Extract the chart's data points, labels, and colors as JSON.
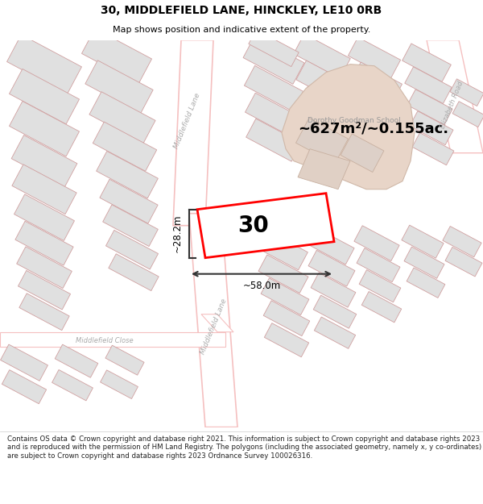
{
  "title": "30, MIDDLEFIELD LANE, HINCKLEY, LE10 0RB",
  "subtitle": "Map shows position and indicative extent of the property.",
  "footer": "Contains OS data © Crown copyright and database right 2021. This information is subject to Crown copyright and database rights 2023 and is reproduced with the permission of HM Land Registry. The polygons (including the associated geometry, namely x, y co-ordinates) are subject to Crown copyright and database rights 2023 Ordnance Survey 100026316.",
  "area_text": "~627m²/~0.155ac.",
  "width_text": "~58.0m",
  "height_text": "~28.2m",
  "number_text": "30",
  "school_text": "Dorothy Goodman School",
  "map_bg": "#ffffff",
  "road_color": "#f5c0c0",
  "road_fill": "#ffffff",
  "building_fill": "#e0e0e0",
  "building_edge": "#d0a0a0",
  "school_fill": "#e8d5c8",
  "school_edge": "#d0b8a8",
  "plot_outline": "#ff0000",
  "plot_fill": "#ffffff",
  "dim_color": "#333333",
  "school_text_color": "#999999",
  "street_text_color": "#aaaaaa",
  "title_fontsize": 10,
  "subtitle_fontsize": 8,
  "footer_fontsize": 6.2
}
